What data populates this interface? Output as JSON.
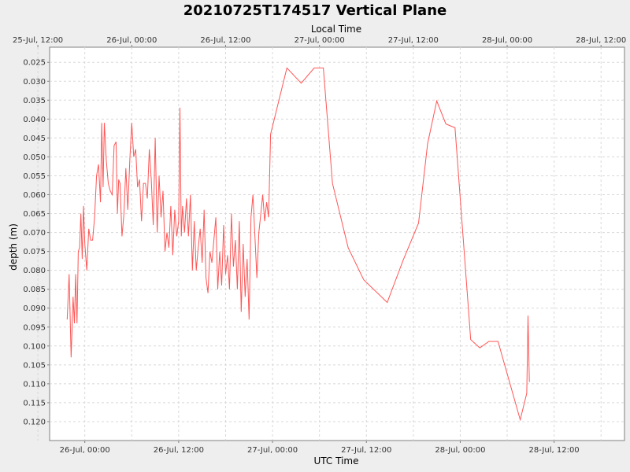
{
  "chart_data": {
    "type": "line",
    "title": "20210725T174517 Vertical Plane",
    "xlabel": "UTC Time",
    "x2label": "Local Time",
    "ylabel": "depth (m)",
    "y_inverted": true,
    "ylim": [
      0.021,
      0.125
    ],
    "yticks": [
      "0.025",
      "0.030",
      "0.035",
      "0.040",
      "0.045",
      "0.050",
      "0.055",
      "0.060",
      "0.065",
      "0.070",
      "0.075",
      "0.080",
      "0.085",
      "0.090",
      "0.095",
      "0.100",
      "0.105",
      "0.110",
      "0.115",
      "0.120"
    ],
    "xlim": [
      "2021-07-25T19:30",
      "2021-07-28T21:00"
    ],
    "xticks_bottom": [
      {
        "time": "2021-07-26T00:00",
        "label": "26-Jul, 00:00"
      },
      {
        "time": "2021-07-26T12:00",
        "label": "26-Jul, 12:00"
      },
      {
        "time": "2021-07-27T00:00",
        "label": "27-Jul, 00:00"
      },
      {
        "time": "2021-07-27T12:00",
        "label": "27-Jul, 12:00"
      },
      {
        "time": "2021-07-28T00:00",
        "label": "28-Jul, 00:00"
      },
      {
        "time": "2021-07-28T12:00",
        "label": "28-Jul, 12:00"
      }
    ],
    "xticks_top": [
      {
        "time": "2021-07-25T18:00",
        "label": "25-Jul, 12:00"
      },
      {
        "time": "2021-07-26T06:00",
        "label": "26-Jul, 00:00"
      },
      {
        "time": "2021-07-26T18:00",
        "label": "26-Jul, 12:00"
      },
      {
        "time": "2021-07-27T06:00",
        "label": "27-Jul, 00:00"
      },
      {
        "time": "2021-07-27T18:00",
        "label": "27-Jul, 12:00"
      },
      {
        "time": "2021-07-28T06:00",
        "label": "28-Jul, 00:00"
      },
      {
        "time": "2021-07-28T18:00",
        "label": "28-Jul, 12:00"
      }
    ],
    "grid": true,
    "line_color": "#ff5555",
    "series": [
      {
        "points": [
          [
            "2021-07-25T21:45",
            0.093
          ],
          [
            "2021-07-25T22:00",
            0.081
          ],
          [
            "2021-07-25T22:15",
            0.103
          ],
          [
            "2021-07-25T22:30",
            0.087
          ],
          [
            "2021-07-25T22:40",
            0.094
          ],
          [
            "2021-07-25T22:50",
            0.081
          ],
          [
            "2021-07-25T23:00",
            0.094
          ],
          [
            "2021-07-25T23:10",
            0.075
          ],
          [
            "2021-07-25T23:20",
            0.074
          ],
          [
            "2021-07-25T23:30",
            0.065
          ],
          [
            "2021-07-25T23:40",
            0.077
          ],
          [
            "2021-07-25T23:50",
            0.063
          ],
          [
            "2021-07-26T00:00",
            0.073
          ],
          [
            "2021-07-26T00:15",
            0.08
          ],
          [
            "2021-07-26T00:30",
            0.069
          ],
          [
            "2021-07-26T00:45",
            0.072
          ],
          [
            "2021-07-26T01:00",
            0.072
          ],
          [
            "2021-07-26T01:15",
            0.066
          ],
          [
            "2021-07-26T01:30",
            0.055
          ],
          [
            "2021-07-26T01:45",
            0.052
          ],
          [
            "2021-07-26T02:00",
            0.062
          ],
          [
            "2021-07-26T02:10",
            0.041
          ],
          [
            "2021-07-26T02:20",
            0.058
          ],
          [
            "2021-07-26T02:30",
            0.041
          ],
          [
            "2021-07-26T02:45",
            0.051
          ],
          [
            "2021-07-26T03:00",
            0.057
          ],
          [
            "2021-07-26T03:15",
            0.059
          ],
          [
            "2021-07-26T03:30",
            0.06
          ],
          [
            "2021-07-26T03:45",
            0.047
          ],
          [
            "2021-07-26T04:00",
            0.046
          ],
          [
            "2021-07-26T04:10",
            0.065
          ],
          [
            "2021-07-26T04:20",
            0.056
          ],
          [
            "2021-07-26T04:30",
            0.057
          ],
          [
            "2021-07-26T04:45",
            0.071
          ],
          [
            "2021-07-26T05:00",
            0.065
          ],
          [
            "2021-07-26T05:15",
            0.053
          ],
          [
            "2021-07-26T05:30",
            0.064
          ],
          [
            "2021-07-26T05:45",
            0.051
          ],
          [
            "2021-07-26T06:00",
            0.041
          ],
          [
            "2021-07-26T06:15",
            0.05
          ],
          [
            "2021-07-26T06:30",
            0.048
          ],
          [
            "2021-07-26T06:45",
            0.058
          ],
          [
            "2021-07-26T07:00",
            0.056
          ],
          [
            "2021-07-26T07:15",
            0.067
          ],
          [
            "2021-07-26T07:30",
            0.057
          ],
          [
            "2021-07-26T07:45",
            0.057
          ],
          [
            "2021-07-26T08:00",
            0.061
          ],
          [
            "2021-07-26T08:15",
            0.048
          ],
          [
            "2021-07-26T08:30",
            0.056
          ],
          [
            "2021-07-26T08:45",
            0.068
          ],
          [
            "2021-07-26T09:00",
            0.045
          ],
          [
            "2021-07-26T09:15",
            0.07
          ],
          [
            "2021-07-26T09:30",
            0.055
          ],
          [
            "2021-07-26T09:45",
            0.066
          ],
          [
            "2021-07-26T10:00",
            0.059
          ],
          [
            "2021-07-26T10:15",
            0.075
          ],
          [
            "2021-07-26T10:30",
            0.07
          ],
          [
            "2021-07-26T10:45",
            0.074
          ],
          [
            "2021-07-26T11:00",
            0.063
          ],
          [
            "2021-07-26T11:15",
            0.076
          ],
          [
            "2021-07-26T11:30",
            0.064
          ],
          [
            "2021-07-26T11:45",
            0.071
          ],
          [
            "2021-07-26T12:00",
            0.067
          ],
          [
            "2021-07-26T12:10",
            0.037
          ],
          [
            "2021-07-26T12:20",
            0.071
          ],
          [
            "2021-07-26T12:30",
            0.063
          ],
          [
            "2021-07-26T12:45",
            0.07
          ],
          [
            "2021-07-26T13:00",
            0.061
          ],
          [
            "2021-07-26T13:15",
            0.071
          ],
          [
            "2021-07-26T13:30",
            0.06
          ],
          [
            "2021-07-26T13:45",
            0.08
          ],
          [
            "2021-07-26T14:00",
            0.067
          ],
          [
            "2021-07-26T14:15",
            0.08
          ],
          [
            "2021-07-26T14:30",
            0.074
          ],
          [
            "2021-07-26T14:45",
            0.069
          ],
          [
            "2021-07-26T15:00",
            0.078
          ],
          [
            "2021-07-26T15:15",
            0.064
          ],
          [
            "2021-07-26T15:30",
            0.082
          ],
          [
            "2021-07-26T15:45",
            0.086
          ],
          [
            "2021-07-26T16:00",
            0.075
          ],
          [
            "2021-07-26T16:15",
            0.078
          ],
          [
            "2021-07-26T16:30",
            0.072
          ],
          [
            "2021-07-26T16:45",
            0.066
          ],
          [
            "2021-07-26T17:00",
            0.085
          ],
          [
            "2021-07-26T17:15",
            0.075
          ],
          [
            "2021-07-26T17:30",
            0.084
          ],
          [
            "2021-07-26T17:45",
            0.068
          ],
          [
            "2021-07-26T18:00",
            0.081
          ],
          [
            "2021-07-26T18:15",
            0.076
          ],
          [
            "2021-07-26T18:30",
            0.085
          ],
          [
            "2021-07-26T18:45",
            0.065
          ],
          [
            "2021-07-26T19:00",
            0.079
          ],
          [
            "2021-07-26T19:15",
            0.072
          ],
          [
            "2021-07-26T19:30",
            0.085
          ],
          [
            "2021-07-26T19:45",
            0.067
          ],
          [
            "2021-07-26T20:00",
            0.091
          ],
          [
            "2021-07-26T20:15",
            0.073
          ],
          [
            "2021-07-26T20:30",
            0.087
          ],
          [
            "2021-07-26T20:45",
            0.077
          ],
          [
            "2021-07-26T21:00",
            0.093
          ],
          [
            "2021-07-26T21:15",
            0.066
          ],
          [
            "2021-07-26T21:30",
            0.06
          ],
          [
            "2021-07-26T21:45",
            0.071
          ],
          [
            "2021-07-26T22:00",
            0.082
          ],
          [
            "2021-07-26T22:15",
            0.07
          ],
          [
            "2021-07-26T22:30",
            0.065
          ],
          [
            "2021-07-26T22:45",
            0.06
          ],
          [
            "2021-07-26T23:00",
            0.067
          ],
          [
            "2021-07-26T23:15",
            0.062
          ],
          [
            "2021-07-26T23:30",
            0.066
          ],
          [
            "2021-07-26T23:45",
            0.044
          ],
          [
            "2021-07-27T01:50",
            0.0265
          ],
          [
            "2021-07-27T03:40",
            0.0305
          ],
          [
            "2021-07-27T05:20",
            0.0265
          ],
          [
            "2021-07-27T06:30",
            0.0265
          ],
          [
            "2021-07-27T07:40",
            0.057
          ],
          [
            "2021-07-27T09:40",
            0.074
          ],
          [
            "2021-07-27T11:40",
            0.0825
          ],
          [
            "2021-07-27T13:40",
            0.0865
          ],
          [
            "2021-07-27T14:40",
            0.0885
          ],
          [
            "2021-07-27T16:40",
            0.0775
          ],
          [
            "2021-07-27T18:40",
            0.0675
          ],
          [
            "2021-07-27T19:50",
            0.0465
          ],
          [
            "2021-07-27T21:00",
            0.0352
          ],
          [
            "2021-07-27T22:10",
            0.0413
          ],
          [
            "2021-07-27T23:20",
            0.0423
          ],
          [
            "2021-07-28T01:20",
            0.0983
          ],
          [
            "2021-07-28T02:30",
            0.1005
          ],
          [
            "2021-07-28T03:40",
            0.0988
          ],
          [
            "2021-07-28T04:50",
            0.0988
          ],
          [
            "2021-07-28T07:40",
            0.1195
          ],
          [
            "2021-07-28T08:30",
            0.1125
          ],
          [
            "2021-07-28T08:40",
            0.092
          ],
          [
            "2021-07-28T08:50",
            0.1095
          ]
        ]
      }
    ]
  }
}
